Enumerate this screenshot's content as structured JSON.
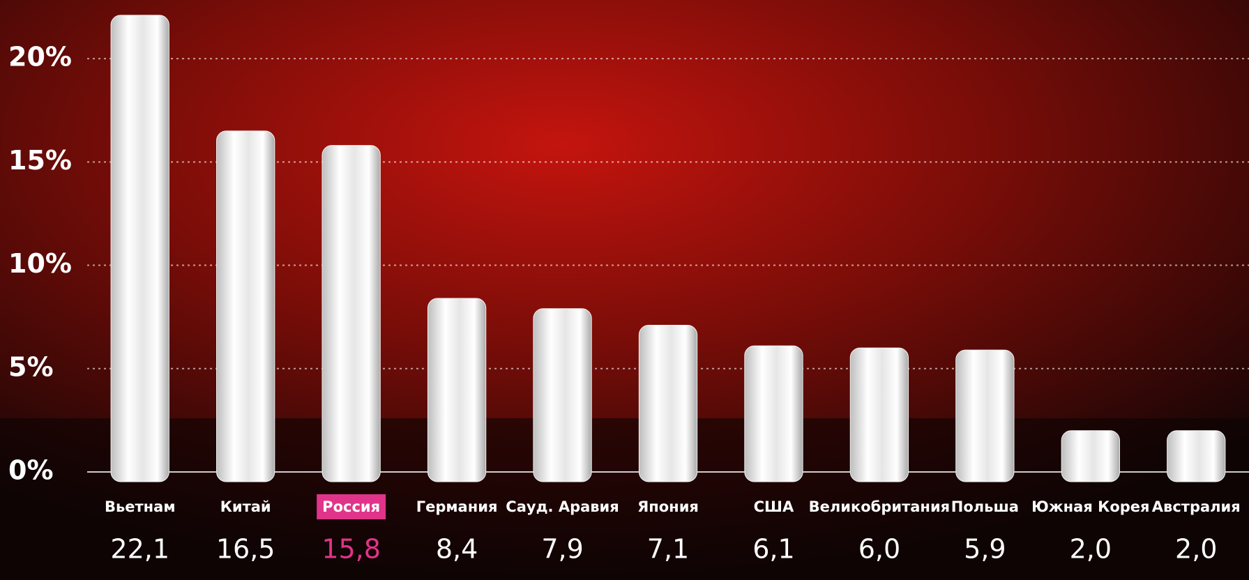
{
  "chart_data": {
    "type": "bar",
    "categories": [
      "Вьетнам",
      "Китай",
      "Россия",
      "Германия",
      "Сауд. Аравия",
      "Япония",
      "США",
      "Великобритания",
      "Польша",
      "Южная Корея",
      "Австралия"
    ],
    "values": [
      22.1,
      16.5,
      15.8,
      8.4,
      7.9,
      7.1,
      6.1,
      6.0,
      5.9,
      2.0,
      2.0
    ],
    "value_labels": [
      "22,1",
      "16,5",
      "15,8",
      "8,4",
      "7,9",
      "7,1",
      "6,1",
      "6,0",
      "5,9",
      "2,0",
      "2,0"
    ],
    "label_colors": [
      "#ffffff",
      "#ffffff",
      "#e0348a",
      "#ffffff",
      "#ffffff",
      "#ffffff",
      "#ffffff",
      "#ffffff",
      "#ffffff",
      "#ffffff",
      "#ffffff"
    ],
    "color": "#f2f2f2",
    "ylim": [
      0,
      22.5
    ],
    "yticks": [
      {
        "value": 0,
        "label": "0%"
      },
      {
        "value": 5,
        "label": "5%"
      },
      {
        "value": 10,
        "label": "10%"
      },
      {
        "value": 15,
        "label": "15%"
      },
      {
        "value": 20,
        "label": "20%"
      }
    ],
    "grid": true
  }
}
